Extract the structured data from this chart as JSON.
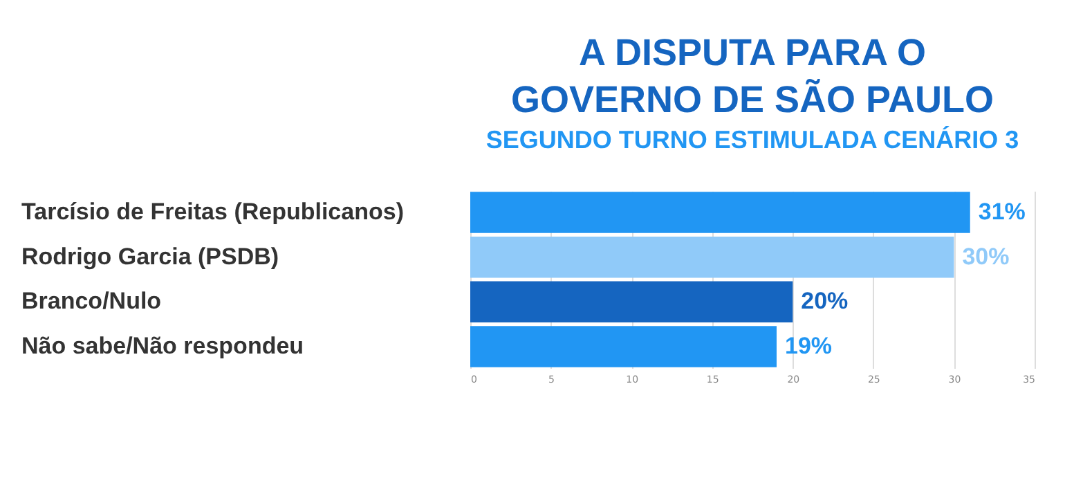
{
  "chart_data": {
    "type": "bar",
    "orientation": "horizontal",
    "title": "A DISPUTA PARA O\nGOVERNO DE SÃO PAULO",
    "subtitle": "SEGUNDO TURNO ESTIMULADA CENÁRIO 3",
    "categories": [
      "Tarcísio de Freitas (Republicanos)",
      "Rodrigo Garcia (PSDB)",
      "Branco/Nulo",
      "Não sabe/Não respondeu"
    ],
    "values": [
      31,
      30,
      20,
      19
    ],
    "colors": [
      "#2196f3",
      "#90caf9",
      "#1565c0",
      "#2196f3"
    ],
    "value_labels": [
      "31%",
      "30%",
      "20%",
      "19%"
    ],
    "xlim": [
      0,
      35
    ],
    "xticks": [
      0,
      5,
      10,
      15,
      20,
      25,
      30,
      35
    ],
    "grid": "x"
  }
}
